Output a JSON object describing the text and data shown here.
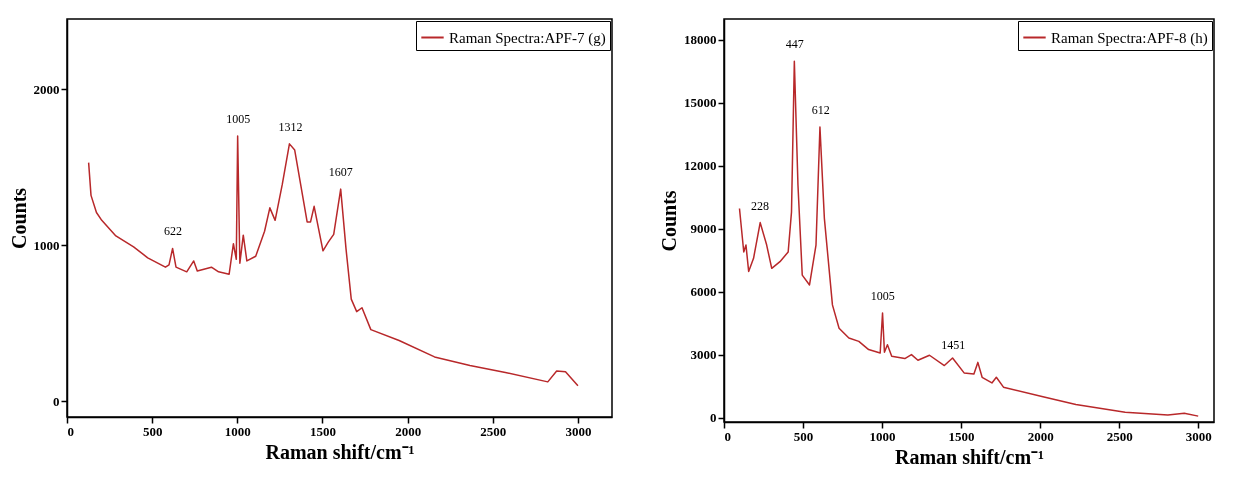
{
  "chart_data": [
    {
      "type": "line",
      "xlabel": "Raman shift/cm⁻¹",
      "ylabel": "Counts",
      "xlim": [
        0,
        3200
      ],
      "ylim": [
        -100,
        2450
      ],
      "xticks": [
        0,
        500,
        1000,
        1500,
        2000,
        2500,
        3000
      ],
      "yticks": [
        0,
        1000,
        2000
      ],
      "grid": false,
      "legend": "top right",
      "marker": "none",
      "line_style": "solid",
      "series": [
        {
          "name": "Raman Spectra:APF-7 (g)",
          "color": "#b8282a",
          "x": [
            127,
            141,
            173,
            204,
            287,
            391,
            474,
            578,
            599,
            620,
            640,
            703,
            744,
            765,
            848,
            890,
            952,
            977,
            994,
            1002,
            1015,
            1035,
            1056,
            1108,
            1160,
            1191,
            1222,
            1264,
            1306,
            1337,
            1410,
            1430,
            1451,
            1503,
            1534,
            1566,
            1607,
            1638,
            1669,
            1701,
            1732,
            1784,
            1950,
            2158,
            2366,
            2574,
            2823,
            2875,
            2927,
            3000
          ],
          "values": [
            1530,
            1320,
            1210,
            1160,
            1060,
            990,
            920,
            860,
            875,
            980,
            860,
            830,
            900,
            835,
            860,
            830,
            815,
            1010,
            910,
            1700,
            885,
            1065,
            900,
            930,
            1090,
            1240,
            1160,
            1390,
            1650,
            1610,
            1150,
            1150,
            1250,
            965,
            1020,
            1070,
            1360,
            980,
            655,
            575,
            600,
            460,
            390,
            285,
            230,
            185,
            125,
            195,
            190,
            100
          ]
        }
      ],
      "annotations": [
        {
          "text": "622",
          "x": 622,
          "y": 980
        },
        {
          "text": "1005",
          "x": 1005,
          "y": 1700
        },
        {
          "text": "1312",
          "x": 1312,
          "y": 1650
        },
        {
          "text": "1607",
          "x": 1607,
          "y": 1360
        }
      ]
    },
    {
      "type": "line",
      "xlabel": "Raman shift/cm⁻¹",
      "ylabel": "Counts",
      "xlim": [
        0,
        3100
      ],
      "ylim": [
        -200,
        19000
      ],
      "xticks": [
        0,
        500,
        1000,
        1500,
        2000,
        2500,
        3000
      ],
      "yticks": [
        0,
        3000,
        6000,
        9000,
        12000,
        15000,
        18000
      ],
      "grid": false,
      "legend": "top right",
      "marker": "none",
      "line_style": "solid",
      "series": [
        {
          "name": "Raman Spectra:APF-8 (h)",
          "color": "#b8282a",
          "x": [
            98,
            125,
            139,
            156,
            187,
            229,
            270,
            302,
            354,
            406,
            427,
            445,
            468,
            495,
            541,
            582,
            607,
            635,
            686,
            728,
            790,
            853,
            915,
            988,
            1003,
            1015,
            1034,
            1061,
            1144,
            1186,
            1227,
            1300,
            1394,
            1446,
            1519,
            1581,
            1606,
            1633,
            1695,
            1723,
            1768,
            2018,
            2226,
            2538,
            2808,
            2912,
            3000
          ],
          "values": [
            9970,
            7900,
            8230,
            6970,
            7600,
            9300,
            8230,
            7120,
            7440,
            7900,
            9800,
            16990,
            11080,
            6800,
            6330,
            8230,
            13850,
            9500,
            5380,
            4270,
            3800,
            3640,
            3250,
            3090,
            4990,
            3120,
            3480,
            2930,
            2820,
            3010,
            2740,
            2980,
            2490,
            2850,
            2140,
            2090,
            2640,
            1930,
            1660,
            1930,
            1460,
            1000,
            630,
            270,
            130,
            220,
            80
          ]
        }
      ],
      "annotations": [
        {
          "text": "228",
          "x": 228,
          "y": 9300
        },
        {
          "text": "447",
          "x": 447,
          "y": 16990
        },
        {
          "text": "612",
          "x": 612,
          "y": 13850
        },
        {
          "text": "1005",
          "x": 1005,
          "y": 4990
        },
        {
          "text": "1451",
          "x": 1451,
          "y": 2640
        }
      ]
    }
  ]
}
